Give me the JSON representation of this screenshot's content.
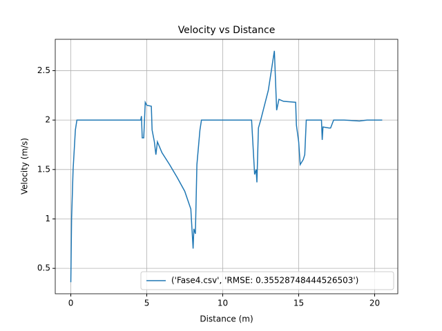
{
  "chart_data": {
    "type": "line",
    "title": "Velocity vs Distance",
    "x_label": "Distance (m)",
    "y_label": "Velocity (m/s)",
    "x": [
      0,
      0.05,
      0.15,
      0.3,
      0.4,
      1,
      2,
      3,
      4,
      4.6,
      4.65,
      4.7,
      4.8,
      4.9,
      5.0,
      5.3,
      5.35,
      5.5,
      5.6,
      5.7,
      6.0,
      6.5,
      7.0,
      7.5,
      7.9,
      8.05,
      8.1,
      8.2,
      8.3,
      8.5,
      8.6,
      9,
      10,
      11,
      11.9,
      12.1,
      12.2,
      12.25,
      12.35,
      12.5,
      13.0,
      13.4,
      13.55,
      13.7,
      14,
      14.8,
      14.85,
      15.0,
      15.1,
      15.3,
      15.4,
      15.5,
      16.0,
      16.5,
      16.55,
      16.6,
      17.0,
      17.1,
      17.3,
      18,
      19,
      19.5,
      20,
      20.5
    ],
    "series": [
      {
        "name": "('Fase4.csv', 'RMSE: 0.35528748444526503')",
        "color": "#1f77b4",
        "values": [
          0.36,
          1.0,
          1.5,
          1.9,
          2.0,
          2.0,
          2.0,
          2.0,
          2.0,
          2.0,
          2.04,
          1.82,
          1.82,
          2.18,
          2.15,
          2.14,
          1.9,
          1.78,
          1.65,
          1.78,
          1.67,
          1.55,
          1.42,
          1.28,
          1.1,
          0.7,
          0.9,
          0.85,
          1.55,
          1.9,
          2.0,
          2.0,
          2.0,
          2.0,
          2.0,
          1.45,
          1.5,
          1.37,
          1.92,
          2.0,
          2.3,
          2.7,
          2.1,
          2.21,
          2.19,
          2.18,
          1.95,
          1.78,
          1.55,
          1.6,
          1.65,
          2.0,
          2.0,
          2.0,
          1.8,
          1.93,
          1.92,
          1.92,
          2.0,
          2.0,
          1.99,
          2.0,
          2.0,
          2.0
        ]
      }
    ],
    "xlim": [
      -1.025,
      21.525
    ],
    "xticks": [
      0,
      5,
      10,
      15,
      20
    ],
    "ylim": [
      0.243,
      2.817
    ],
    "yticks": [
      0.5,
      1.0,
      1.5,
      2.0,
      2.5
    ],
    "grid": true,
    "legend": "lower right"
  }
}
